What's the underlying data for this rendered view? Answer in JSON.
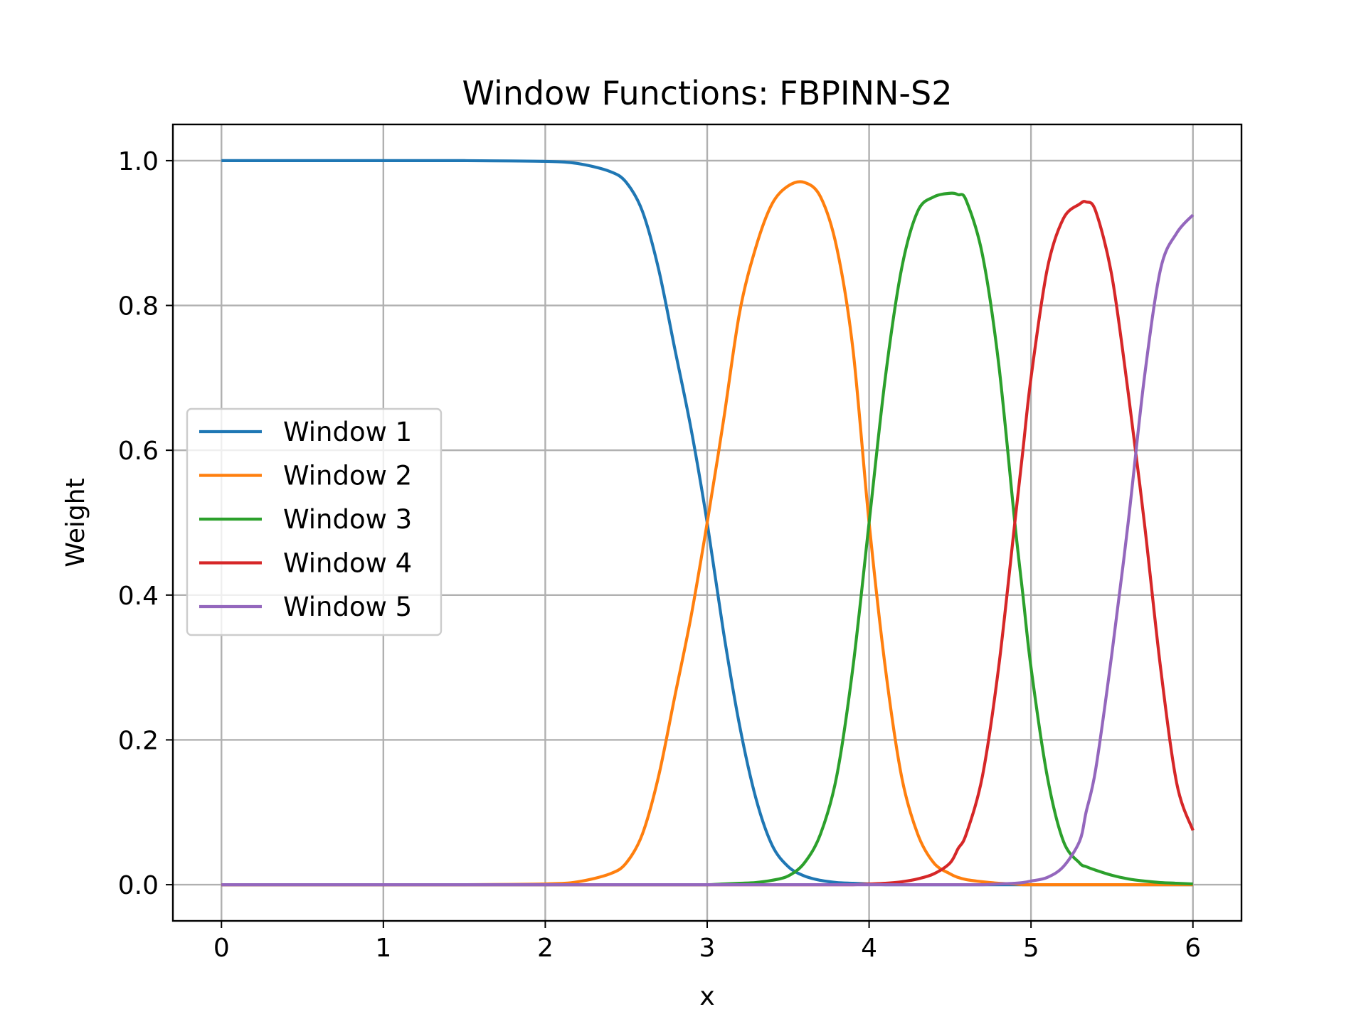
{
  "chart_data": {
    "type": "line",
    "title": "Window Functions: FBPINN-S2",
    "xlabel": "x",
    "ylabel": "Weight",
    "xlim": [
      -0.3,
      6.3
    ],
    "ylim": [
      -0.05,
      1.05
    ],
    "xticks": [
      0,
      1,
      2,
      3,
      4,
      5,
      6
    ],
    "xtick_labels": [
      "0",
      "1",
      "2",
      "3",
      "4",
      "5",
      "6"
    ],
    "yticks": [
      0.0,
      0.2,
      0.4,
      0.6,
      0.8,
      1.0
    ],
    "ytick_labels": [
      "0.0",
      "0.2",
      "0.4",
      "0.6",
      "0.8",
      "1.0"
    ],
    "grid": true,
    "legend_position": "center-left",
    "x": [
      0,
      0.5,
      1.0,
      1.5,
      2.0,
      2.2,
      2.4,
      2.5,
      2.6,
      2.7,
      2.8,
      2.9,
      3.0,
      3.1,
      3.2,
      3.3,
      3.4,
      3.5,
      3.6,
      3.7,
      3.8,
      3.9,
      4.0,
      4.1,
      4.2,
      4.3,
      4.4,
      4.5,
      4.55,
      4.6,
      4.7,
      4.8,
      4.9,
      4.95,
      5.0,
      5.1,
      5.2,
      5.3,
      5.34,
      5.4,
      5.5,
      5.6,
      5.7,
      5.8,
      5.9,
      6.0
    ],
    "series": [
      {
        "name": "Window 1",
        "color": "#1f77b4",
        "values": [
          1.0,
          1.0,
          1.0,
          1.0,
          0.999,
          0.996,
          0.985,
          0.97,
          0.93,
          0.85,
          0.74,
          0.63,
          0.5,
          0.35,
          0.22,
          0.12,
          0.055,
          0.025,
          0.012,
          0.006,
          0.003,
          0.002,
          0.001,
          0.0,
          0.0,
          0.0,
          0.0,
          0.0,
          0.0,
          0.0,
          0.0,
          0.0,
          0.0,
          0.0,
          0.0,
          0.0,
          0.0,
          0.0,
          0.0,
          0.0,
          0.0,
          0.0,
          0.0,
          0.0,
          0.0,
          0.0
        ]
      },
      {
        "name": "Window 2",
        "color": "#ff7f0e",
        "values": [
          0.0,
          0.0,
          0.0,
          0.0,
          0.001,
          0.004,
          0.015,
          0.03,
          0.07,
          0.15,
          0.26,
          0.37,
          0.5,
          0.64,
          0.79,
          0.88,
          0.94,
          0.965,
          0.97,
          0.95,
          0.88,
          0.74,
          0.5,
          0.3,
          0.15,
          0.07,
          0.03,
          0.015,
          0.01,
          0.007,
          0.004,
          0.002,
          0.001,
          0.0,
          0.0,
          0.0,
          0.0,
          0.0,
          0.0,
          0.0,
          0.0,
          0.0,
          0.0,
          0.0,
          0.0,
          0.0
        ]
      },
      {
        "name": "Window 3",
        "color": "#2ca02c",
        "values": [
          0.0,
          0.0,
          0.0,
          0.0,
          0.0,
          0.0,
          0.0,
          0.0,
          0.0,
          0.0,
          0.0,
          0.0,
          0.0,
          0.001,
          0.002,
          0.003,
          0.006,
          0.012,
          0.03,
          0.07,
          0.15,
          0.3,
          0.5,
          0.7,
          0.85,
          0.93,
          0.95,
          0.955,
          0.953,
          0.945,
          0.87,
          0.72,
          0.5,
          0.4,
          0.3,
          0.15,
          0.06,
          0.03,
          0.025,
          0.02,
          0.013,
          0.008,
          0.005,
          0.003,
          0.002,
          0.001
        ]
      },
      {
        "name": "Window 4",
        "color": "#d62728",
        "values": [
          0.0,
          0.0,
          0.0,
          0.0,
          0.0,
          0.0,
          0.0,
          0.0,
          0.0,
          0.0,
          0.0,
          0.0,
          0.0,
          0.0,
          0.0,
          0.0,
          0.0,
          0.0,
          0.0,
          0.0,
          0.0,
          0.0,
          0.001,
          0.002,
          0.004,
          0.008,
          0.015,
          0.03,
          0.05,
          0.07,
          0.15,
          0.3,
          0.5,
          0.6,
          0.7,
          0.85,
          0.92,
          0.94,
          0.943,
          0.93,
          0.84,
          0.68,
          0.5,
          0.3,
          0.14,
          0.075
        ]
      },
      {
        "name": "Window 5",
        "color": "#9467bd",
        "values": [
          0.0,
          0.0,
          0.0,
          0.0,
          0.0,
          0.0,
          0.0,
          0.0,
          0.0,
          0.0,
          0.0,
          0.0,
          0.0,
          0.0,
          0.0,
          0.0,
          0.0,
          0.0,
          0.0,
          0.0,
          0.0,
          0.0,
          0.0,
          0.0,
          0.0,
          0.0,
          0.0,
          0.0,
          0.0,
          0.0,
          0.0,
          0.001,
          0.002,
          0.003,
          0.005,
          0.01,
          0.025,
          0.06,
          0.1,
          0.16,
          0.32,
          0.5,
          0.7,
          0.85,
          0.9,
          0.925
        ]
      }
    ]
  }
}
